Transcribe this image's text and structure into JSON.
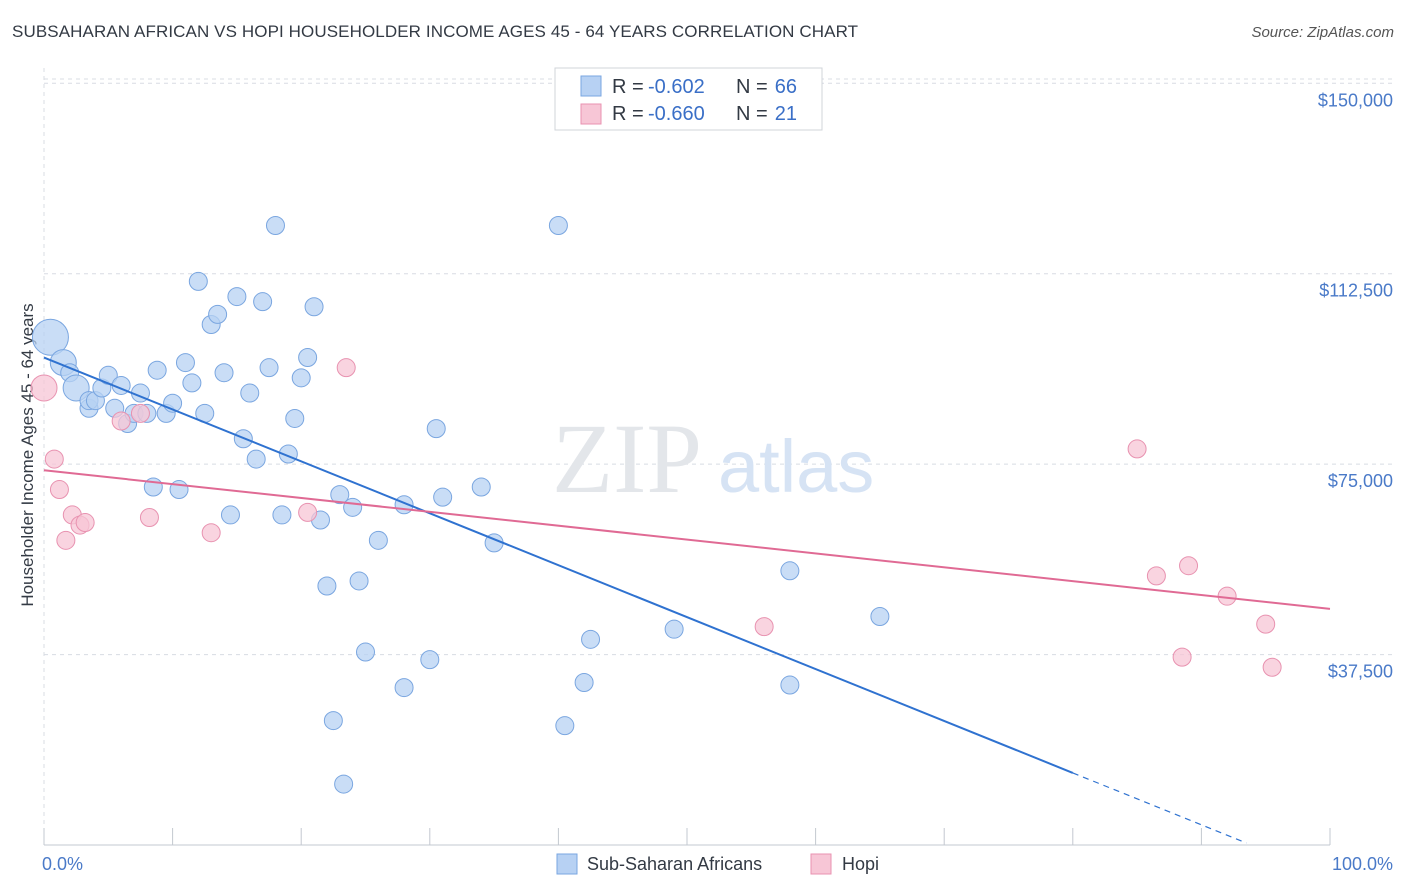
{
  "title": "SUBSAHARAN AFRICAN VS HOPI HOUSEHOLDER INCOME AGES 45 - 64 YEARS CORRELATION CHART",
  "source": "Source: ZipAtlas.com",
  "watermark": {
    "zip": "ZIP",
    "atlas": "atlas"
  },
  "colors": {
    "blue_fill": "#b7d1f3",
    "blue_stroke": "#7aa6e0",
    "blue_line": "#2f72d0",
    "pink_fill": "#f7c6d6",
    "pink_stroke": "#e892b0",
    "pink_line": "#e06a94",
    "grid": "#d8dce3",
    "axis_text": "#4a7ac8"
  },
  "legend": {
    "rows": [
      {
        "r_label": "R =",
        "r_value": "-0.602",
        "n_label": "N =",
        "n_value": "66"
      },
      {
        "r_label": "R =",
        "r_value": "-0.660",
        "n_label": "N =",
        "n_value": "21"
      }
    ]
  },
  "chart_data": {
    "type": "scatter",
    "title": "SUBSAHARAN AFRICAN VS HOPI HOUSEHOLDER INCOME AGES 45 - 64 YEARS CORRELATION CHART",
    "xlabel": "",
    "ylabel": "Householder Income Ages 45 - 64 years",
    "xlim": [
      0,
      100
    ],
    "ylim": [
      0,
      157500
    ],
    "x_tick_labels": [
      "0.0%",
      "100.0%"
    ],
    "y_ticks": [
      37500,
      75000,
      112500,
      150000
    ],
    "y_tick_labels": [
      "$37,500",
      "$75,000",
      "$112,500",
      "$150,000"
    ],
    "grid": true,
    "legend_position": "top-center",
    "series": [
      {
        "name": "Sub-Saharan Africans",
        "color": "#b7d1f3",
        "trend": {
          "x0": 0,
          "y0": 96000,
          "x1": 80,
          "y1": 14200,
          "dashed_to_x": 93.5
        },
        "points": [
          {
            "x": 0.5,
            "y": 100000,
            "s": 3
          },
          {
            "x": 1.5,
            "y": 95000,
            "s": 2
          },
          {
            "x": 2,
            "y": 93000,
            "s": 1
          },
          {
            "x": 2.5,
            "y": 90000,
            "s": 2
          },
          {
            "x": 3.5,
            "y": 86000,
            "s": 1
          },
          {
            "x": 3.5,
            "y": 87500,
            "s": 1
          },
          {
            "x": 4,
            "y": 87500,
            "s": 1
          },
          {
            "x": 4.5,
            "y": 90000,
            "s": 1
          },
          {
            "x": 5,
            "y": 92500,
            "s": 1
          },
          {
            "x": 5.5,
            "y": 86000,
            "s": 1
          },
          {
            "x": 6,
            "y": 90500,
            "s": 1
          },
          {
            "x": 6.5,
            "y": 83000,
            "s": 1
          },
          {
            "x": 7,
            "y": 85000,
            "s": 1
          },
          {
            "x": 7.5,
            "y": 89000,
            "s": 1
          },
          {
            "x": 8,
            "y": 85000,
            "s": 1
          },
          {
            "x": 8.5,
            "y": 70500,
            "s": 1
          },
          {
            "x": 8.8,
            "y": 93500,
            "s": 1
          },
          {
            "x": 9.5,
            "y": 85000,
            "s": 1
          },
          {
            "x": 10,
            "y": 87000,
            "s": 1
          },
          {
            "x": 10.5,
            "y": 70000,
            "s": 1
          },
          {
            "x": 11,
            "y": 95000,
            "s": 1
          },
          {
            "x": 11.5,
            "y": 91000,
            "s": 1
          },
          {
            "x": 12,
            "y": 111000,
            "s": 1
          },
          {
            "x": 12.5,
            "y": 85000,
            "s": 1
          },
          {
            "x": 13,
            "y": 102500,
            "s": 1
          },
          {
            "x": 13.5,
            "y": 104500,
            "s": 1
          },
          {
            "x": 14,
            "y": 93000,
            "s": 1
          },
          {
            "x": 14.5,
            "y": 65000,
            "s": 1
          },
          {
            "x": 15,
            "y": 108000,
            "s": 1
          },
          {
            "x": 15.5,
            "y": 80000,
            "s": 1
          },
          {
            "x": 16,
            "y": 89000,
            "s": 1
          },
          {
            "x": 16.5,
            "y": 76000,
            "s": 1
          },
          {
            "x": 17,
            "y": 107000,
            "s": 1
          },
          {
            "x": 17.5,
            "y": 94000,
            "s": 1
          },
          {
            "x": 18,
            "y": 122000,
            "s": 1
          },
          {
            "x": 18.5,
            "y": 65000,
            "s": 1
          },
          {
            "x": 19,
            "y": 77000,
            "s": 1
          },
          {
            "x": 19.5,
            "y": 84000,
            "s": 1
          },
          {
            "x": 20,
            "y": 92000,
            "s": 1
          },
          {
            "x": 20.5,
            "y": 96000,
            "s": 1
          },
          {
            "x": 21,
            "y": 106000,
            "s": 1
          },
          {
            "x": 21.5,
            "y": 64000,
            "s": 1
          },
          {
            "x": 22,
            "y": 51000,
            "s": 1
          },
          {
            "x": 22.5,
            "y": 24500,
            "s": 1
          },
          {
            "x": 23,
            "y": 69000,
            "s": 1
          },
          {
            "x": 23.3,
            "y": 12000,
            "s": 1
          },
          {
            "x": 24,
            "y": 66500,
            "s": 1
          },
          {
            "x": 24.5,
            "y": 52000,
            "s": 1
          },
          {
            "x": 25,
            "y": 38000,
            "s": 1
          },
          {
            "x": 26,
            "y": 60000,
            "s": 1
          },
          {
            "x": 28,
            "y": 31000,
            "s": 1
          },
          {
            "x": 28,
            "y": 67000,
            "s": 1
          },
          {
            "x": 30,
            "y": 36500,
            "s": 1
          },
          {
            "x": 30.5,
            "y": 82000,
            "s": 1
          },
          {
            "x": 31,
            "y": 68500,
            "s": 1
          },
          {
            "x": 34,
            "y": 70500,
            "s": 1
          },
          {
            "x": 35,
            "y": 59500,
            "s": 1
          },
          {
            "x": 40,
            "y": 122000,
            "s": 1
          },
          {
            "x": 40.5,
            "y": 23500,
            "s": 1
          },
          {
            "x": 42,
            "y": 32000,
            "s": 1
          },
          {
            "x": 42.5,
            "y": 40500,
            "s": 1
          },
          {
            "x": 49,
            "y": 42500,
            "s": 1
          },
          {
            "x": 58,
            "y": 31500,
            "s": 1
          },
          {
            "x": 58,
            "y": 54000,
            "s": 1
          },
          {
            "x": 65,
            "y": 45000,
            "s": 1
          }
        ]
      },
      {
        "name": "Hopi",
        "color": "#f7c6d6",
        "trend": {
          "x0": 0,
          "y0": 73800,
          "x1": 100,
          "y1": 46500
        },
        "points": [
          {
            "x": 0,
            "y": 90000,
            "s": 2
          },
          {
            "x": 0.8,
            "y": 76000,
            "s": 1
          },
          {
            "x": 1.2,
            "y": 70000,
            "s": 1
          },
          {
            "x": 1.7,
            "y": 60000,
            "s": 1
          },
          {
            "x": 2.2,
            "y": 65000,
            "s": 1
          },
          {
            "x": 2.8,
            "y": 63000,
            "s": 1
          },
          {
            "x": 3.2,
            "y": 63500,
            "s": 1
          },
          {
            "x": 6,
            "y": 83500,
            "s": 1
          },
          {
            "x": 7.5,
            "y": 85000,
            "s": 1
          },
          {
            "x": 8.2,
            "y": 64500,
            "s": 1
          },
          {
            "x": 13,
            "y": 61500,
            "s": 1
          },
          {
            "x": 20.5,
            "y": 65500,
            "s": 1
          },
          {
            "x": 23.5,
            "y": 94000,
            "s": 1
          },
          {
            "x": 56,
            "y": 43000,
            "s": 1
          },
          {
            "x": 85,
            "y": 78000,
            "s": 1
          },
          {
            "x": 86.5,
            "y": 53000,
            "s": 1
          },
          {
            "x": 88.5,
            "y": 37000,
            "s": 1
          },
          {
            "x": 89,
            "y": 55000,
            "s": 1
          },
          {
            "x": 92,
            "y": 49000,
            "s": 1
          },
          {
            "x": 95,
            "y": 43500,
            "s": 1
          },
          {
            "x": 95.5,
            "y": 35000,
            "s": 1
          }
        ]
      }
    ]
  }
}
